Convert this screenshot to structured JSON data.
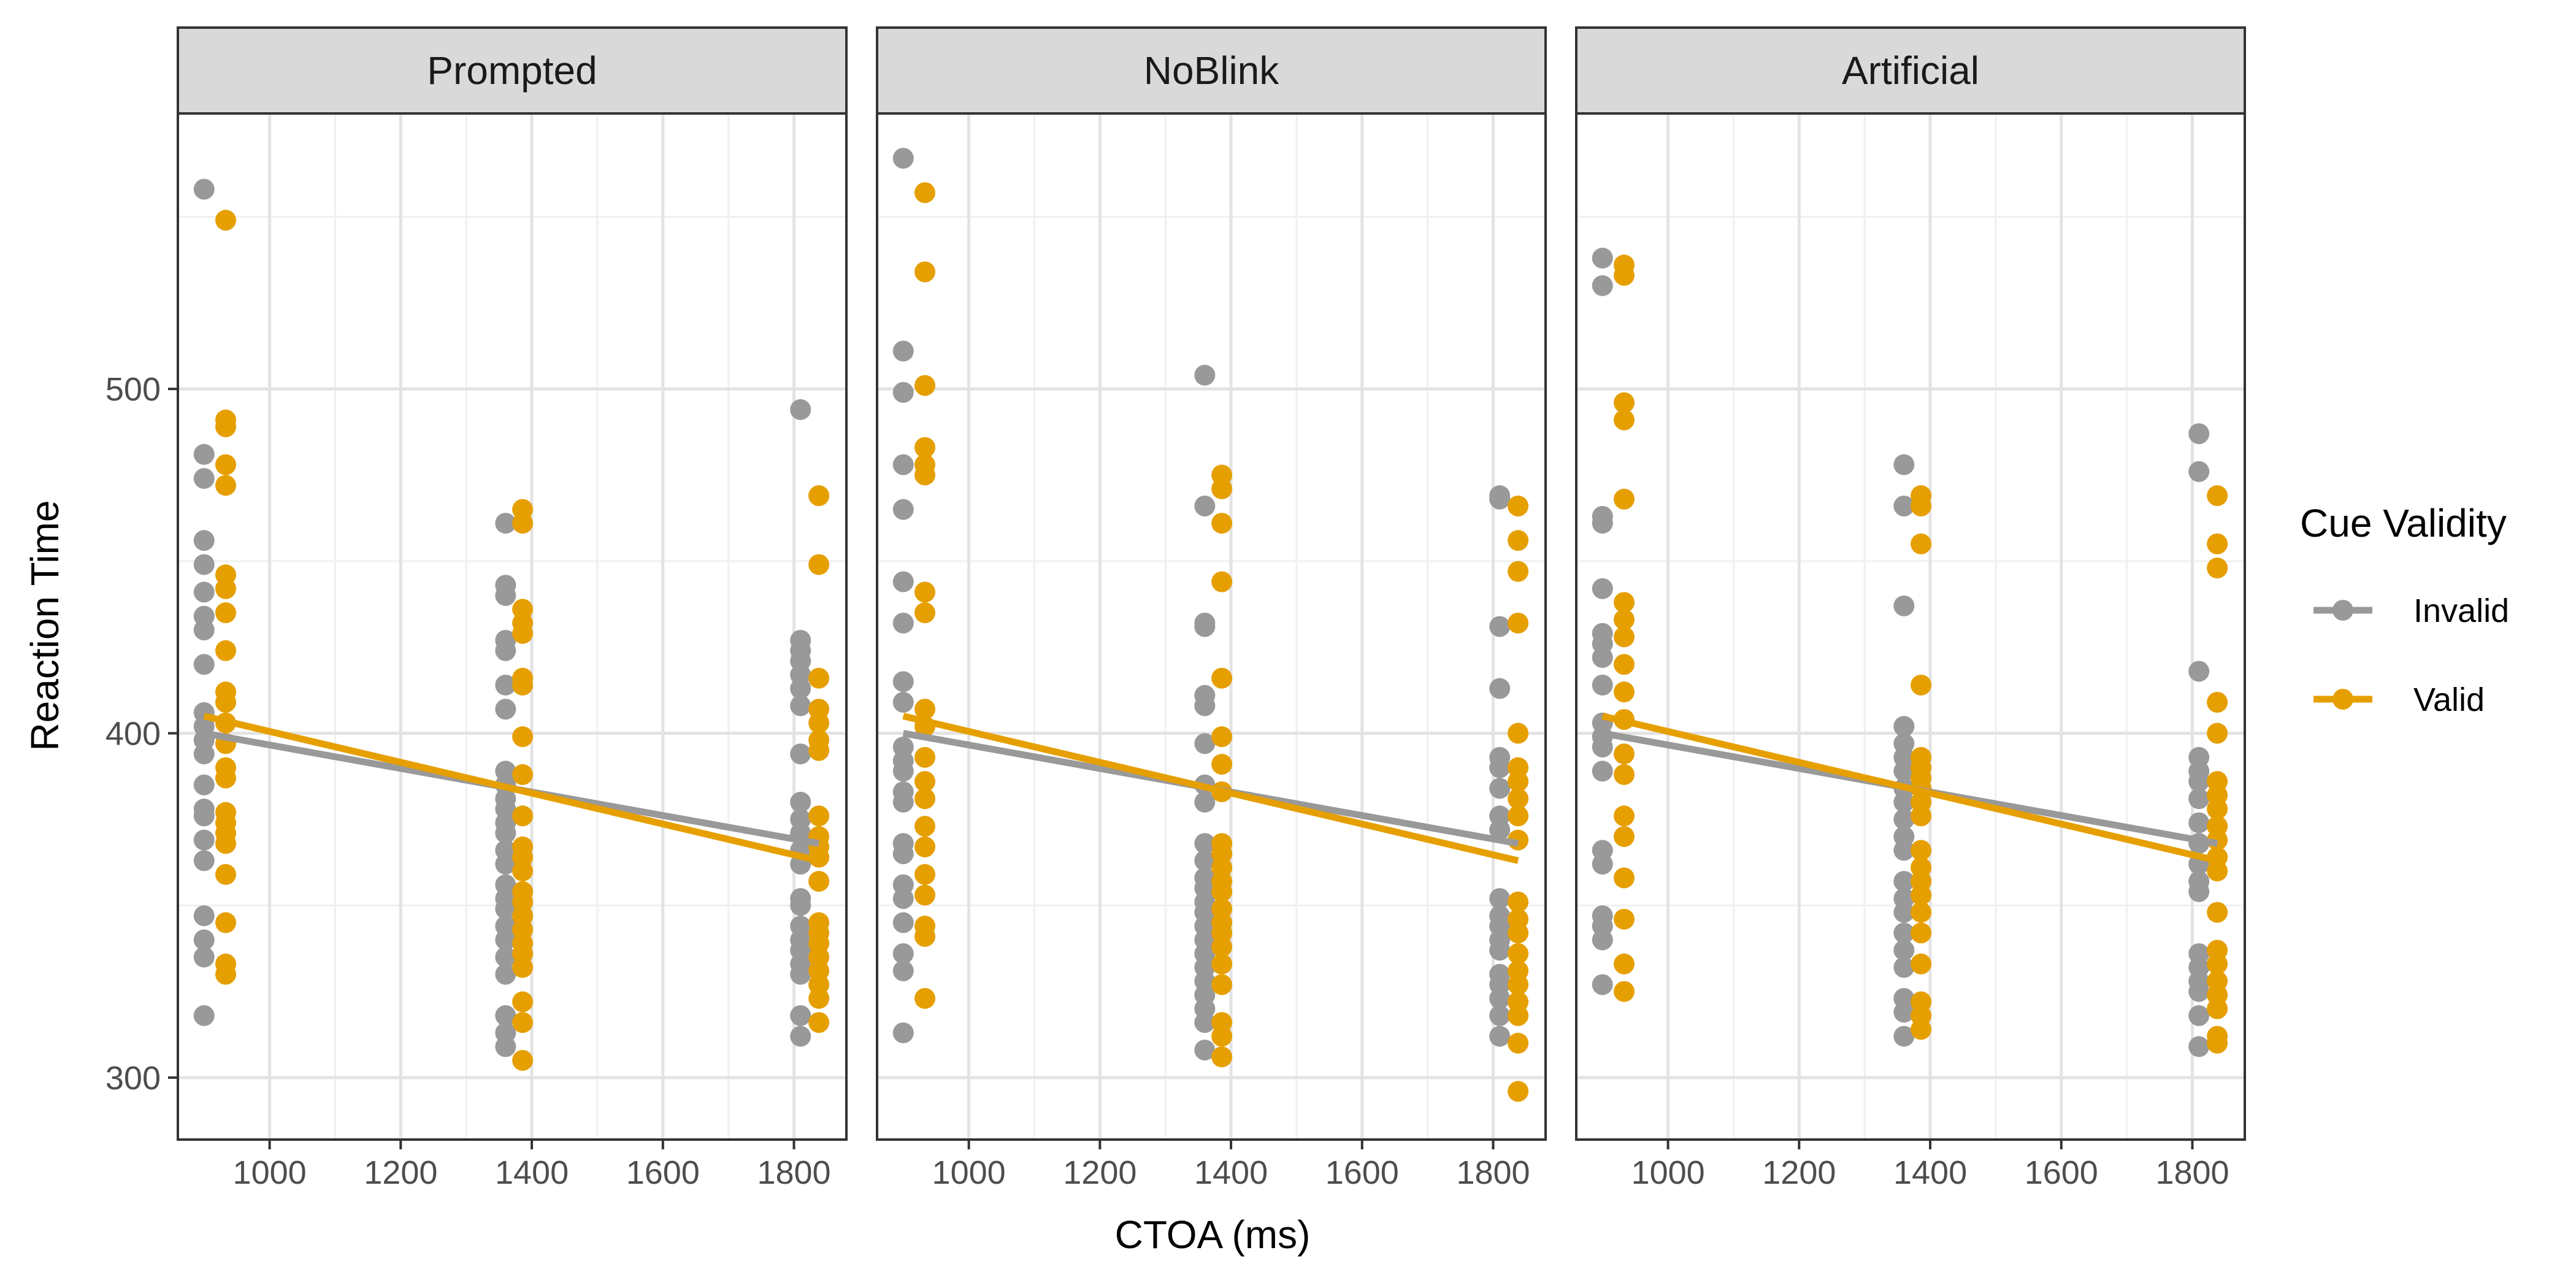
{
  "chart_data": {
    "type": "scatter",
    "xlabel": "CTOA (ms)",
    "ylabel": "Reaction Time",
    "xlim": [
      860,
      1880
    ],
    "ylim": [
      282,
      580
    ],
    "xticks": [
      1000,
      1200,
      1400,
      1600,
      1800
    ],
    "yticks": [
      300,
      400,
      500
    ],
    "grid": true,
    "legend": {
      "title": "Cue Validity",
      "position": "right",
      "entries": [
        {
          "label": "Invalid",
          "color": "#999999"
        },
        {
          "label": "Valid",
          "color": "#E69F00"
        }
      ]
    },
    "panels": [
      {
        "title": "Prompted",
        "series": [
          {
            "name": "Invalid",
            "color": "#999999",
            "x": 900,
            "y": [
              558,
              481,
              474,
              456,
              449,
              441,
              434,
              430,
              420,
              406,
              402,
              398,
              394,
              385,
              378,
              376,
              369,
              363,
              347,
              340,
              335,
              318
            ]
          },
          {
            "name": "Valid",
            "color": "#E69F00",
            "x": 933,
            "y": [
              549,
              491,
              489,
              478,
              472,
              446,
              442,
              435,
              424,
              412,
              409,
              403,
              397,
              390,
              387,
              377,
              374,
              371,
              368,
              359,
              345,
              333,
              330
            ]
          },
          {
            "name": "Invalid",
            "color": "#999999",
            "x": 1360,
            "y": [
              461,
              443,
              440,
              427,
              424,
              414,
              407,
              389,
              385,
              381,
              378,
              374,
              371,
              366,
              362,
              356,
              352,
              349,
              344,
              340,
              335,
              330,
              318,
              313,
              309
            ]
          },
          {
            "name": "Valid",
            "color": "#E69F00",
            "x": 1386,
            "y": [
              465,
              461,
              436,
              432,
              429,
              416,
              414,
              399,
              388,
              376,
              367,
              364,
              360,
              354,
              351,
              347,
              343,
              339,
              336,
              332,
              322,
              316,
              305
            ]
          },
          {
            "name": "Invalid",
            "color": "#999999",
            "x": 1810,
            "y": [
              494,
              427,
              424,
              421,
              417,
              413,
              408,
              394,
              380,
              375,
              371,
              366,
              362,
              352,
              350,
              344,
              340,
              337,
              333,
              330,
              318,
              312
            ]
          },
          {
            "name": "Valid",
            "color": "#E69F00",
            "x": 1838,
            "y": [
              469,
              469,
              449,
              416,
              407,
              403,
              398,
              395,
              376,
              370,
              367,
              364,
              357,
              345,
              342,
              339,
              335,
              331,
              327,
              323,
              316
            ]
          }
        ],
        "trend_lines": [
          {
            "name": "Invalid",
            "color": "#999999",
            "x": [
              900,
              1838
            ],
            "y": [
              400,
              368
            ]
          },
          {
            "name": "Valid",
            "color": "#E69F00",
            "x": [
              900,
              1838
            ],
            "y": [
              405,
              363
            ]
          }
        ]
      },
      {
        "title": "NoBlink",
        "series": [
          {
            "name": "Invalid",
            "color": "#999999",
            "x": 900,
            "y": [
              567,
              511,
              499,
              478,
              465,
              444,
              432,
              415,
              409,
              396,
              392,
              389,
              383,
              380,
              368,
              365,
              356,
              352,
              345,
              336,
              331,
              313
            ]
          },
          {
            "name": "Valid",
            "color": "#E69F00",
            "x": 933,
            "y": [
              557,
              534,
              501,
              483,
              478,
              475,
              441,
              435,
              407,
              402,
              393,
              386,
              381,
              373,
              367,
              359,
              353,
              344,
              341,
              323
            ]
          },
          {
            "name": "Invalid",
            "color": "#999999",
            "x": 1360,
            "y": [
              504,
              466,
              432,
              431,
              411,
              408,
              397,
              385,
              380,
              368,
              363,
              358,
              355,
              351,
              348,
              344,
              340,
              336,
              332,
              328,
              324,
              320,
              316,
              308
            ]
          },
          {
            "name": "Valid",
            "color": "#E69F00",
            "x": 1386,
            "y": [
              475,
              471,
              461,
              444,
              416,
              399,
              391,
              383,
              368,
              365,
              361,
              357,
              354,
              349,
              345,
              342,
              338,
              333,
              327,
              316,
              312,
              306
            ]
          },
          {
            "name": "Invalid",
            "color": "#999999",
            "x": 1810,
            "y": [
              469,
              468,
              431,
              413,
              393,
              390,
              384,
              376,
              372,
              352,
              347,
              344,
              340,
              337,
              330,
              327,
              323,
              318,
              312
            ]
          },
          {
            "name": "Valid",
            "color": "#E69F00",
            "x": 1838,
            "y": [
              466,
              456,
              447,
              432,
              400,
              390,
              386,
              381,
              376,
              369,
              351,
              346,
              342,
              336,
              331,
              327,
              322,
              318,
              310,
              296
            ]
          }
        ],
        "trend_lines": [
          {
            "name": "Invalid",
            "color": "#999999",
            "x": [
              900,
              1838
            ],
            "y": [
              400,
              368
            ]
          },
          {
            "name": "Valid",
            "color": "#E69F00",
            "x": [
              900,
              1838
            ],
            "y": [
              405,
              363
            ]
          }
        ]
      },
      {
        "title": "Artificial",
        "series": [
          {
            "name": "Invalid",
            "color": "#999999",
            "x": 900,
            "y": [
              538,
              530,
              463,
              461,
              442,
              429,
              426,
              422,
              414,
              403,
              399,
              396,
              389,
              366,
              362,
              347,
              344,
              340,
              327
            ]
          },
          {
            "name": "Valid",
            "color": "#E69F00",
            "x": 933,
            "y": [
              536,
              533,
              496,
              491,
              468,
              438,
              433,
              428,
              420,
              412,
              404,
              394,
              388,
              376,
              370,
              358,
              346,
              333,
              325
            ]
          },
          {
            "name": "Invalid",
            "color": "#999999",
            "x": 1360,
            "y": [
              478,
              466,
              437,
              402,
              397,
              393,
              389,
              384,
              380,
              375,
              370,
              366,
              357,
              352,
              348,
              342,
              337,
              332,
              323,
              319,
              312
            ]
          },
          {
            "name": "Valid",
            "color": "#E69F00",
            "x": 1386,
            "y": [
              469,
              466,
              455,
              414,
              393,
              390,
              387,
              384,
              380,
              376,
              366,
              361,
              357,
              353,
              348,
              342,
              333,
              322,
              318,
              314
            ]
          },
          {
            "name": "Invalid",
            "color": "#999999",
            "x": 1810,
            "y": [
              487,
              476,
              418,
              393,
              389,
              386,
              381,
              374,
              368,
              362,
              357,
              354,
              336,
              332,
              328,
              325,
              318,
              309
            ]
          },
          {
            "name": "Valid",
            "color": "#E69F00",
            "x": 1838,
            "y": [
              469,
              455,
              448,
              409,
              400,
              386,
              382,
              378,
              373,
              369,
              364,
              360,
              348,
              337,
              333,
              328,
              324,
              320,
              312,
              310
            ]
          }
        ],
        "trend_lines": [
          {
            "name": "Invalid",
            "color": "#999999",
            "x": [
              900,
              1838
            ],
            "y": [
              400,
              368
            ]
          },
          {
            "name": "Valid",
            "color": "#E69F00",
            "x": [
              900,
              1838
            ],
            "y": [
              405,
              363
            ]
          }
        ]
      }
    ]
  }
}
